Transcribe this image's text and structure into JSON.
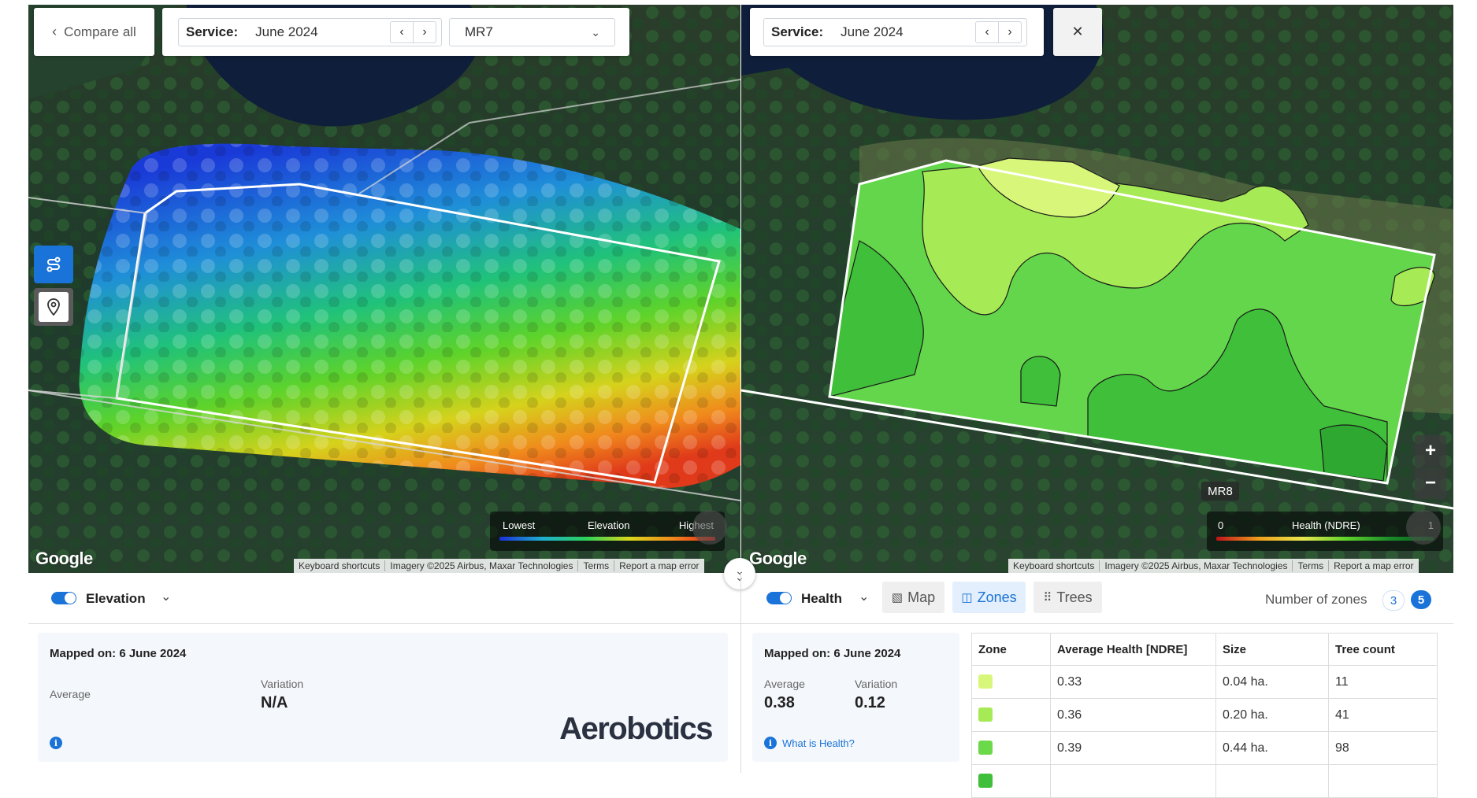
{
  "left": {
    "compare_all": "Compare all",
    "service_label": "Service:",
    "service_value": "June 2024",
    "block_select": "MR7",
    "legend": {
      "low": "Lowest",
      "title": "Elevation",
      "high": "Highest"
    },
    "layer": "Elevation",
    "mapped_on": "Mapped on: 6 June 2024",
    "average_label": "Average",
    "variation_label": "Variation",
    "variation_value": "N/A",
    "logo": "Aerobotics"
  },
  "right": {
    "service_label": "Service:",
    "service_value": "June 2024",
    "block_label": "MR8",
    "legend": {
      "low": "0",
      "title": "Health (NDRE)",
      "high": "1"
    },
    "layer": "Health",
    "tabs": [
      "Map",
      "Zones",
      "Trees"
    ],
    "active_tab": "Zones",
    "zones_label": "Number of zones",
    "zone_options": [
      "3",
      "5"
    ],
    "zone_selected": "5",
    "mapped_on": "Mapped on: 6 June 2024",
    "average_label": "Average",
    "average_value": "0.38",
    "variation_label": "Variation",
    "variation_value": "0.12",
    "help_link": "What is Health?",
    "table": {
      "headers": [
        "Zone",
        "Average Health [NDRE]",
        "Size",
        "Tree count"
      ],
      "rows": [
        {
          "color": "#d8f77a",
          "health": "0.33",
          "size": "0.04 ha.",
          "trees": "11"
        },
        {
          "color": "#a6ea55",
          "health": "0.36",
          "size": "0.20 ha.",
          "trees": "41"
        },
        {
          "color": "#6cd94a",
          "health": "0.39",
          "size": "0.44 ha.",
          "trees": "98"
        }
      ]
    }
  },
  "map_common": {
    "google": "Google",
    "attrib": [
      "Keyboard shortcuts",
      "Imagery ©2025 Airbus, Maxar Technologies",
      "Terms",
      "Report a map error"
    ],
    "zoom_in": "+",
    "zoom_out": "−"
  },
  "colors": {
    "accent": "#1a73d8",
    "zone_dark": "#3fbf3a"
  }
}
